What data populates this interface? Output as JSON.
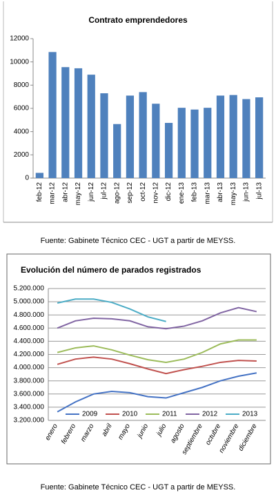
{
  "chart_data": [
    {
      "type": "bar",
      "title": "Contrato emprendedores",
      "categories": [
        "feb-12",
        "mar-12",
        "abr-12",
        "may-12",
        "jun-12",
        "jul-12",
        "ago-12",
        "sep-12",
        "oct-12",
        "nov-12",
        "dic-12",
        "ene-13",
        "feb-13",
        "mar-13",
        "abr-13",
        "may-13",
        "jun-13",
        "jul-13"
      ],
      "values": [
        450,
        10850,
        9550,
        9450,
        8900,
        7300,
        4650,
        7100,
        7400,
        6400,
        4750,
        6050,
        5900,
        6050,
        7100,
        7150,
        6800,
        6950
      ],
      "color": "#4f81bd",
      "ylim": [
        0,
        12000
      ],
      "yticks": [
        0,
        2000,
        4000,
        6000,
        8000,
        10000,
        12000
      ],
      "grid": false,
      "source": "Fuente: Gabinete Técnico CEC - UGT a partir de MEYSS."
    },
    {
      "type": "line",
      "title": "Evolución del número de parados registrados",
      "categories": [
        "enero",
        "febrero",
        "marzo",
        "abril",
        "mayo",
        "junio",
        "julio",
        "agosto",
        "septiembre",
        "octubre",
        "noviembre",
        "diciembre"
      ],
      "series": [
        {
          "name": "2009",
          "color": "#4472c4",
          "values": [
            3330000,
            3480000,
            3600000,
            3640000,
            3620000,
            3560000,
            3540000,
            3620000,
            3700000,
            3800000,
            3870000,
            3920000
          ]
        },
        {
          "name": "2010",
          "color": "#c0504d",
          "values": [
            4050000,
            4130000,
            4160000,
            4130000,
            4060000,
            3980000,
            3910000,
            3970000,
            4020000,
            4080000,
            4110000,
            4100000
          ]
        },
        {
          "name": "2011",
          "color": "#9bbb59",
          "values": [
            4230000,
            4300000,
            4330000,
            4270000,
            4190000,
            4120000,
            4080000,
            4130000,
            4230000,
            4360000,
            4420000,
            4420000
          ]
        },
        {
          "name": "2012",
          "color": "#8064a2",
          "values": [
            4600000,
            4710000,
            4750000,
            4740000,
            4710000,
            4620000,
            4590000,
            4630000,
            4710000,
            4830000,
            4910000,
            4850000
          ]
        },
        {
          "name": "2013",
          "color": "#4bacc6",
          "values": [
            4980000,
            5040000,
            5040000,
            4990000,
            4890000,
            4770000,
            4700000,
            null,
            null,
            null,
            null,
            null
          ]
        }
      ],
      "ylim": [
        3200000,
        5200000
      ],
      "yticks": [
        {
          "value": 3200000,
          "label": "3.200.000"
        },
        {
          "value": 3400000,
          "label": "3.400.000"
        },
        {
          "value": 3600000,
          "label": "3.600.000"
        },
        {
          "value": 3800000,
          "label": "3.800.000"
        },
        {
          "value": 4000000,
          "label": "4.000.000"
        },
        {
          "value": 4200000,
          "label": "4.200.000"
        },
        {
          "value": 4400000,
          "label": "4.400.000"
        },
        {
          "value": 4600000,
          "label": "4.600.000"
        },
        {
          "value": 4800000,
          "label": "4.800.000"
        },
        {
          "value": 5000000,
          "label": "5.000.000"
        },
        {
          "value": 5200000,
          "label": "5.200.000"
        }
      ],
      "grid": true,
      "legend": "bottom",
      "source": "Fuente: Gabinete Técnico CEC - UGT a partir de MEYSS."
    }
  ]
}
